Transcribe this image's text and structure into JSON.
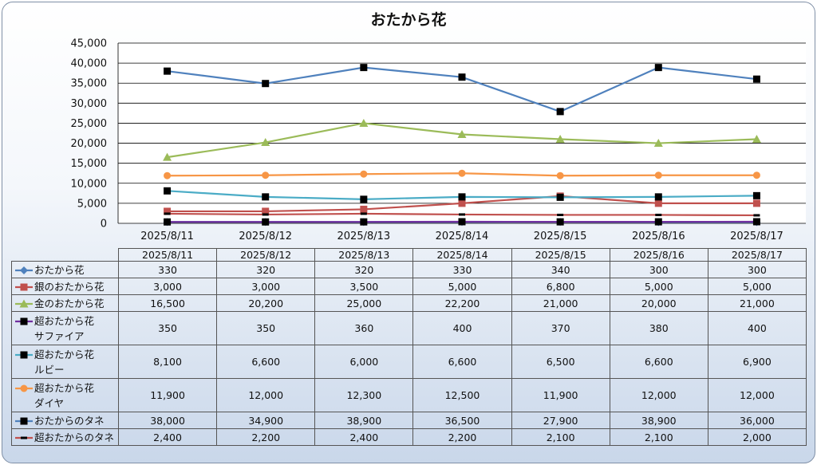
{
  "chart_data": {
    "type": "line",
    "title": "おたから花",
    "categories": [
      "2025/8/11",
      "2025/8/12",
      "2025/8/13",
      "2025/8/14",
      "2025/8/15",
      "2025/8/16",
      "2025/8/17"
    ],
    "ylim": [
      0,
      45000
    ],
    "yticks": [
      "0",
      "5,000",
      "10,000",
      "15,000",
      "20,000",
      "25,000",
      "30,000",
      "35,000",
      "40,000",
      "45,000"
    ],
    "grid": true,
    "legend": "data-table",
    "series": [
      {
        "name": "おたから花",
        "label_lines": [
          "おたから花"
        ],
        "color": "#4f81bd",
        "marker": "diamond",
        "values": [
          330,
          320,
          320,
          330,
          340,
          300,
          300
        ],
        "display": [
          "330",
          "320",
          "320",
          "330",
          "340",
          "300",
          "300"
        ]
      },
      {
        "name": "銀のおたから花",
        "label_lines": [
          "銀のおたから花"
        ],
        "color": "#c0504d",
        "marker": "square",
        "values": [
          3000,
          3000,
          3500,
          5000,
          6800,
          5000,
          5000
        ],
        "display": [
          "3,000",
          "3,000",
          "3,500",
          "5,000",
          "6,800",
          "5,000",
          "5,000"
        ]
      },
      {
        "name": "金のおたから花",
        "label_lines": [
          "金のおたから花"
        ],
        "color": "#9bbb59",
        "marker": "triangle",
        "values": [
          16500,
          20200,
          25000,
          22200,
          21000,
          20000,
          21000
        ],
        "display": [
          "16,500",
          "20,200",
          "25,000",
          "22,200",
          "21,000",
          "20,000",
          "21,000"
        ]
      },
      {
        "name": "超おたから花 サファイア",
        "label_lines": [
          "超おたから花",
          "サファイア"
        ],
        "color": "#7030a0",
        "marker": "square-black",
        "values": [
          350,
          350,
          360,
          400,
          370,
          380,
          400
        ],
        "display": [
          "350",
          "350",
          "360",
          "400",
          "370",
          "380",
          "400"
        ]
      },
      {
        "name": "超おたから花 ルビー",
        "label_lines": [
          "超おたから花",
          "ルビー"
        ],
        "color": "#4bacc6",
        "marker": "square-black",
        "values": [
          8100,
          6600,
          6000,
          6600,
          6500,
          6600,
          6900
        ],
        "display": [
          "8,100",
          "6,600",
          "6,000",
          "6,600",
          "6,500",
          "6,600",
          "6,900"
        ]
      },
      {
        "name": "超おたから花 ダイヤ",
        "label_lines": [
          "超おたから花",
          "ダイヤ"
        ],
        "color": "#f79646",
        "marker": "circle",
        "values": [
          11900,
          12000,
          12300,
          12500,
          11900,
          12000,
          12000
        ],
        "display": [
          "11,900",
          "12,000",
          "12,300",
          "12,500",
          "11,900",
          "12,000",
          "12,000"
        ]
      },
      {
        "name": "おたからのタネ",
        "label_lines": [
          "おたからのタネ"
        ],
        "color": "#4f81bd",
        "marker": "square-black",
        "values": [
          38000,
          34900,
          38900,
          36500,
          27900,
          38900,
          36000
        ],
        "display": [
          "38,000",
          "34,900",
          "38,900",
          "36,500",
          "27,900",
          "38,900",
          "36,000"
        ]
      },
      {
        "name": "超おたからのタネ",
        "label_lines": [
          "超おたからのタネ"
        ],
        "color": "#c0504d",
        "marker": "dash-black",
        "values": [
          2400,
          2200,
          2400,
          2200,
          2100,
          2100,
          2000
        ],
        "display": [
          "2,400",
          "2,200",
          "2,400",
          "2,200",
          "2,100",
          "2,100",
          "2,000"
        ]
      }
    ]
  }
}
